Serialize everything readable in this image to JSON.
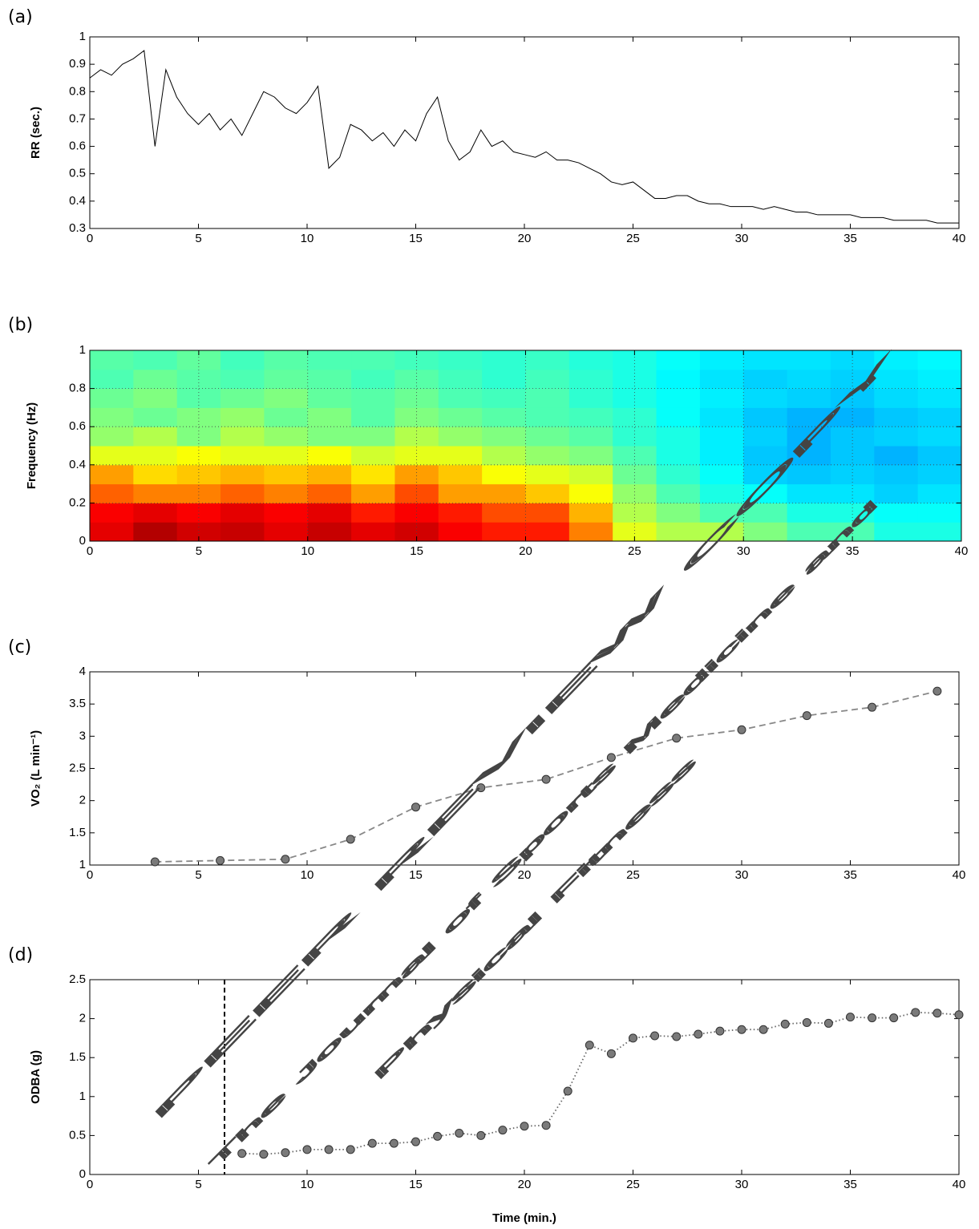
{
  "chart_data": [
    {
      "type": "line",
      "panel_label": "(a)",
      "y_label": "RR (sec.)",
      "x": [
        0,
        0.5,
        1,
        1.5,
        2,
        2.5,
        3,
        3.5,
        4,
        4.5,
        5,
        5.5,
        6,
        6.5,
        7,
        7.5,
        8,
        8.5,
        9,
        9.5,
        10,
        10.5,
        11,
        11.5,
        12,
        12.5,
        13,
        13.5,
        14,
        14.5,
        15,
        15.5,
        16,
        16.5,
        17,
        17.5,
        18,
        18.5,
        19,
        19.5,
        20,
        20.5,
        21,
        21.5,
        22,
        22.5,
        23,
        23.5,
        24,
        24.5,
        25,
        25.5,
        26,
        26.5,
        27,
        27.5,
        28,
        28.5,
        29,
        29.5,
        30,
        30.5,
        31,
        31.5,
        32,
        32.5,
        33,
        33.5,
        34,
        34.5,
        35,
        35.5,
        36,
        36.5,
        37,
        37.5,
        38,
        38.5,
        39,
        39.5,
        40
      ],
      "series": [
        {
          "color": "#000000",
          "line_style": "solid",
          "values": [
            0.85,
            0.88,
            0.86,
            0.9,
            0.92,
            0.95,
            0.6,
            0.88,
            0.78,
            0.72,
            0.68,
            0.72,
            0.66,
            0.7,
            0.64,
            0.72,
            0.8,
            0.78,
            0.74,
            0.72,
            0.76,
            0.82,
            0.52,
            0.56,
            0.68,
            0.66,
            0.62,
            0.65,
            0.6,
            0.66,
            0.62,
            0.72,
            0.78,
            0.62,
            0.55,
            0.58,
            0.66,
            0.6,
            0.62,
            0.58,
            0.57,
            0.56,
            0.58,
            0.55,
            0.55,
            0.54,
            0.52,
            0.5,
            0.47,
            0.46,
            0.47,
            0.44,
            0.41,
            0.41,
            0.42,
            0.42,
            0.4,
            0.39,
            0.39,
            0.38,
            0.38,
            0.38,
            0.37,
            0.38,
            0.37,
            0.36,
            0.36,
            0.35,
            0.35,
            0.35,
            0.35,
            0.34,
            0.34,
            0.34,
            0.33,
            0.33,
            0.33,
            0.33,
            0.32,
            0.32,
            0.32
          ]
        }
      ],
      "xlim": [
        0,
        40
      ],
      "xticks": [
        0,
        5,
        10,
        15,
        20,
        25,
        30,
        35,
        40
      ],
      "ylim": [
        0.3,
        1
      ],
      "yticks": [
        0.3,
        0.4,
        0.5,
        0.6,
        0.7,
        0.8,
        0.9,
        1
      ]
    },
    {
      "type": "heatmap",
      "panel_label": "(b)",
      "y_label": "Frequency (Hz)",
      "colormap": "jet",
      "grid": true,
      "xlim": [
        0,
        40
      ],
      "xticks": [
        0,
        5,
        10,
        15,
        20,
        25,
        30,
        35,
        40
      ],
      "ylim": [
        0,
        1
      ],
      "yticks": [
        0,
        0.2,
        0.4,
        0.6,
        0.8,
        1
      ],
      "z": [
        [
          0.9,
          0.95,
          0.92,
          0.93,
          0.9,
          0.93,
          0.9,
          0.92,
          0.88,
          0.85,
          0.85,
          0.75,
          0.6,
          0.55,
          0.55,
          0.5,
          0.45,
          0.45,
          0.4,
          0.4
        ],
        [
          0.88,
          0.9,
          0.88,
          0.9,
          0.88,
          0.9,
          0.85,
          0.88,
          0.85,
          0.8,
          0.8,
          0.7,
          0.55,
          0.5,
          0.45,
          0.45,
          0.4,
          0.4,
          0.38,
          0.38
        ],
        [
          0.78,
          0.75,
          0.75,
          0.78,
          0.75,
          0.78,
          0.72,
          0.8,
          0.72,
          0.72,
          0.68,
          0.62,
          0.52,
          0.45,
          0.4,
          0.38,
          0.35,
          0.35,
          0.33,
          0.35
        ],
        [
          0.72,
          0.66,
          0.68,
          0.7,
          0.68,
          0.7,
          0.65,
          0.72,
          0.68,
          0.62,
          0.6,
          0.58,
          0.48,
          0.42,
          0.38,
          0.33,
          0.32,
          0.33,
          0.32,
          0.33
        ],
        [
          0.6,
          0.6,
          0.62,
          0.6,
          0.6,
          0.62,
          0.58,
          0.6,
          0.6,
          0.55,
          0.52,
          0.5,
          0.45,
          0.4,
          0.36,
          0.32,
          0.3,
          0.32,
          0.3,
          0.32
        ],
        [
          0.52,
          0.55,
          0.5,
          0.55,
          0.52,
          0.5,
          0.5,
          0.55,
          0.52,
          0.5,
          0.48,
          0.46,
          0.42,
          0.4,
          0.36,
          0.33,
          0.3,
          0.32,
          0.33,
          0.34
        ],
        [
          0.5,
          0.48,
          0.5,
          0.52,
          0.48,
          0.5,
          0.46,
          0.5,
          0.48,
          0.46,
          0.45,
          0.44,
          0.42,
          0.38,
          0.35,
          0.32,
          0.3,
          0.3,
          0.32,
          0.33
        ],
        [
          0.48,
          0.5,
          0.46,
          0.48,
          0.5,
          0.47,
          0.46,
          0.48,
          0.45,
          0.44,
          0.45,
          0.42,
          0.4,
          0.38,
          0.36,
          0.34,
          0.33,
          0.32,
          0.34,
          0.35
        ],
        [
          0.45,
          0.48,
          0.46,
          0.45,
          0.47,
          0.46,
          0.44,
          0.46,
          0.44,
          0.42,
          0.44,
          0.42,
          0.4,
          0.37,
          0.35,
          0.33,
          0.34,
          0.33,
          0.35,
          0.36
        ],
        [
          0.46,
          0.45,
          0.47,
          0.44,
          0.46,
          0.45,
          0.45,
          0.44,
          0.43,
          0.42,
          0.43,
          0.41,
          0.4,
          0.38,
          0.36,
          0.35,
          0.35,
          0.34,
          0.36,
          0.37
        ]
      ]
    },
    {
      "type": "line",
      "panel_label": "(c)",
      "y_label": "VO₂ (L min⁻¹)",
      "x": [
        3,
        6,
        9,
        12,
        15,
        18,
        21,
        24,
        27,
        30,
        33,
        36,
        39
      ],
      "series": [
        {
          "color": "#888888",
          "line_style": "dashed",
          "marker": "circle",
          "values": [
            1.05,
            1.07,
            1.09,
            1.4,
            1.9,
            2.2,
            2.33,
            2.67,
            2.97,
            3.1,
            3.32,
            3.45,
            3.7
          ]
        }
      ],
      "xlim": [
        0,
        40
      ],
      "xticks": [
        0,
        5,
        10,
        15,
        20,
        25,
        30,
        35,
        40
      ],
      "ylim": [
        1,
        4
      ],
      "yticks": [
        1,
        1.5,
        2,
        2.5,
        3,
        3.5,
        4
      ]
    },
    {
      "type": "line",
      "panel_label": "(d)",
      "y_label": "ODBA (g)",
      "x_label": "Time (min.)",
      "vline": 6.2,
      "x": [
        7,
        8,
        9,
        10,
        11,
        12,
        13,
        14,
        15,
        16,
        17,
        18,
        19,
        20,
        21,
        22,
        23,
        24,
        25,
        26,
        27,
        28,
        29,
        30,
        31,
        32,
        33,
        34,
        35,
        36,
        37,
        38,
        39,
        40
      ],
      "series": [
        {
          "color": "#666666",
          "line_style": "dotted",
          "marker": "circle",
          "values": [
            0.27,
            0.26,
            0.28,
            0.32,
            0.32,
            0.32,
            0.4,
            0.4,
            0.42,
            0.49,
            0.53,
            0.5,
            0.57,
            0.62,
            0.63,
            1.07,
            1.66,
            1.55,
            1.75,
            1.78,
            1.77,
            1.8,
            1.84,
            1.86,
            1.86,
            1.93,
            1.95,
            1.94,
            2.02,
            2.01,
            2.01,
            2.08,
            2.07,
            2.05
          ]
        }
      ],
      "xlim": [
        0,
        40
      ],
      "xticks": [
        0,
        5,
        10,
        15,
        20,
        25,
        30,
        35,
        40
      ],
      "ylim": [
        0,
        2.5
      ],
      "yticks": [
        0,
        0.5,
        1,
        1.5,
        2,
        2.5
      ]
    }
  ],
  "watermark": [
    "PEER REVIEW COPY",
    "The Journal of Sports Medicine and",
    "Physical Fitness"
  ]
}
